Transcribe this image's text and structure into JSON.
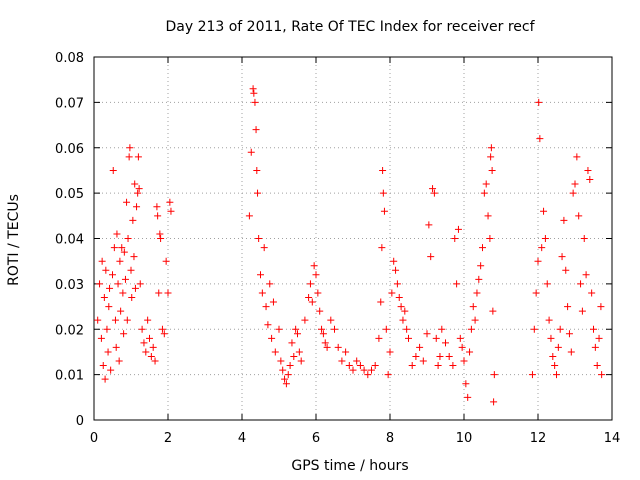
{
  "chart_data": {
    "type": "scatter",
    "title": "Day 213 of 2011, Rate Of TEC Index for receiver recf",
    "xlabel": "GPS time / hours",
    "ylabel": "ROTI / TECUs",
    "xlim": [
      0,
      14
    ],
    "ylim": [
      0,
      0.08
    ],
    "xticks": [
      0,
      2,
      4,
      6,
      8,
      10,
      12,
      14
    ],
    "xtick_labels": [
      "0",
      "2",
      "4",
      "6",
      "8",
      "10",
      "12",
      "14"
    ],
    "yticks": [
      0,
      0.01,
      0.02,
      0.03,
      0.04,
      0.05,
      0.06,
      0.07,
      0.08
    ],
    "ytick_labels": [
      "0",
      "0.01",
      "0.02",
      "0.03",
      "0.04",
      "0.05",
      "0.06",
      "0.07",
      "0.08"
    ],
    "grid": true,
    "marker": "+",
    "marker_color": "#ff0000",
    "series": [
      {
        "points": [
          [
            0.1,
            0.022
          ],
          [
            0.15,
            0.03
          ],
          [
            0.2,
            0.018
          ],
          [
            0.22,
            0.035
          ],
          [
            0.25,
            0.012
          ],
          [
            0.28,
            0.027
          ],
          [
            0.3,
            0.009
          ],
          [
            0.32,
            0.033
          ],
          [
            0.35,
            0.02
          ],
          [
            0.38,
            0.015
          ],
          [
            0.4,
            0.025
          ],
          [
            0.42,
            0.029
          ],
          [
            0.45,
            0.011
          ],
          [
            0.5,
            0.032
          ],
          [
            0.52,
            0.055
          ],
          [
            0.55,
            0.038
          ],
          [
            0.58,
            0.022
          ],
          [
            0.6,
            0.016
          ],
          [
            0.62,
            0.041
          ],
          [
            0.65,
            0.03
          ],
          [
            0.68,
            0.013
          ],
          [
            0.7,
            0.035
          ],
          [
            0.72,
            0.024
          ],
          [
            0.75,
            0.038
          ],
          [
            0.78,
            0.028
          ],
          [
            0.8,
            0.019
          ],
          [
            0.82,
            0.037
          ],
          [
            0.85,
            0.031
          ],
          [
            0.88,
            0.048
          ],
          [
            0.9,
            0.022
          ],
          [
            0.92,
            0.04
          ],
          [
            0.95,
            0.058
          ],
          [
            0.97,
            0.06
          ],
          [
            1.0,
            0.033
          ],
          [
            1.02,
            0.027
          ],
          [
            1.05,
            0.044
          ],
          [
            1.08,
            0.036
          ],
          [
            1.1,
            0.052
          ],
          [
            1.12,
            0.029
          ],
          [
            1.15,
            0.047
          ],
          [
            1.18,
            0.05
          ],
          [
            1.2,
            0.058
          ],
          [
            1.22,
            0.051
          ],
          [
            1.25,
            0.03
          ],
          [
            1.3,
            0.02
          ],
          [
            1.35,
            0.017
          ],
          [
            1.4,
            0.015
          ],
          [
            1.45,
            0.022
          ],
          [
            1.5,
            0.018
          ],
          [
            1.55,
            0.014
          ],
          [
            1.6,
            0.016
          ],
          [
            1.65,
            0.013
          ],
          [
            1.7,
            0.047
          ],
          [
            1.72,
            0.045
          ],
          [
            1.75,
            0.028
          ],
          [
            1.78,
            0.041
          ],
          [
            1.8,
            0.04
          ],
          [
            1.85,
            0.02
          ],
          [
            1.9,
            0.019
          ],
          [
            1.95,
            0.035
          ],
          [
            2.0,
            0.028
          ],
          [
            2.05,
            0.048
          ],
          [
            2.08,
            0.046
          ],
          [
            4.2,
            0.045
          ],
          [
            4.25,
            0.059
          ],
          [
            4.3,
            0.073
          ],
          [
            4.32,
            0.072
          ],
          [
            4.35,
            0.07
          ],
          [
            4.38,
            0.064
          ],
          [
            4.4,
            0.055
          ],
          [
            4.42,
            0.05
          ],
          [
            4.45,
            0.04
          ],
          [
            4.5,
            0.032
          ],
          [
            4.55,
            0.028
          ],
          [
            4.6,
            0.038
          ],
          [
            4.65,
            0.025
          ],
          [
            4.7,
            0.021
          ],
          [
            4.75,
            0.03
          ],
          [
            4.8,
            0.018
          ],
          [
            4.85,
            0.026
          ],
          [
            4.9,
            0.015
          ],
          [
            5.0,
            0.02
          ],
          [
            5.05,
            0.013
          ],
          [
            5.1,
            0.011
          ],
          [
            5.15,
            0.009
          ],
          [
            5.2,
            0.008
          ],
          [
            5.25,
            0.01
          ],
          [
            5.3,
            0.012
          ],
          [
            5.35,
            0.017
          ],
          [
            5.4,
            0.014
          ],
          [
            5.45,
            0.02
          ],
          [
            5.5,
            0.019
          ],
          [
            5.55,
            0.015
          ],
          [
            5.6,
            0.013
          ],
          [
            5.7,
            0.022
          ],
          [
            5.8,
            0.027
          ],
          [
            5.85,
            0.03
          ],
          [
            5.9,
            0.026
          ],
          [
            5.95,
            0.034
          ],
          [
            6.0,
            0.032
          ],
          [
            6.05,
            0.028
          ],
          [
            6.1,
            0.024
          ],
          [
            6.15,
            0.02
          ],
          [
            6.2,
            0.019
          ],
          [
            6.25,
            0.017
          ],
          [
            6.3,
            0.016
          ],
          [
            6.4,
            0.022
          ],
          [
            6.5,
            0.02
          ],
          [
            6.6,
            0.016
          ],
          [
            6.7,
            0.013
          ],
          [
            6.8,
            0.015
          ],
          [
            6.9,
            0.012
          ],
          [
            7.0,
            0.011
          ],
          [
            7.1,
            0.013
          ],
          [
            7.2,
            0.012
          ],
          [
            7.3,
            0.011
          ],
          [
            7.4,
            0.01
          ],
          [
            7.5,
            0.011
          ],
          [
            7.6,
            0.012
          ],
          [
            7.7,
            0.018
          ],
          [
            7.75,
            0.026
          ],
          [
            7.78,
            0.038
          ],
          [
            7.8,
            0.055
          ],
          [
            7.82,
            0.05
          ],
          [
            7.85,
            0.046
          ],
          [
            7.9,
            0.02
          ],
          [
            7.95,
            0.01
          ],
          [
            8.0,
            0.015
          ],
          [
            8.05,
            0.028
          ],
          [
            8.1,
            0.035
          ],
          [
            8.15,
            0.033
          ],
          [
            8.2,
            0.03
          ],
          [
            8.25,
            0.027
          ],
          [
            8.3,
            0.025
          ],
          [
            8.35,
            0.022
          ],
          [
            8.4,
            0.024
          ],
          [
            8.45,
            0.02
          ],
          [
            8.5,
            0.018
          ],
          [
            8.6,
            0.012
          ],
          [
            8.7,
            0.014
          ],
          [
            8.8,
            0.016
          ],
          [
            8.9,
            0.013
          ],
          [
            9.0,
            0.019
          ],
          [
            9.05,
            0.043
          ],
          [
            9.1,
            0.036
          ],
          [
            9.15,
            0.051
          ],
          [
            9.2,
            0.05
          ],
          [
            9.25,
            0.018
          ],
          [
            9.3,
            0.012
          ],
          [
            9.35,
            0.014
          ],
          [
            9.4,
            0.02
          ],
          [
            9.5,
            0.017
          ],
          [
            9.6,
            0.014
          ],
          [
            9.7,
            0.012
          ],
          [
            9.75,
            0.04
          ],
          [
            9.8,
            0.03
          ],
          [
            9.85,
            0.042
          ],
          [
            9.9,
            0.018
          ],
          [
            9.95,
            0.016
          ],
          [
            10.0,
            0.013
          ],
          [
            10.05,
            0.008
          ],
          [
            10.1,
            0.005
          ],
          [
            10.15,
            0.015
          ],
          [
            10.2,
            0.02
          ],
          [
            10.25,
            0.025
          ],
          [
            10.3,
            0.022
          ],
          [
            10.35,
            0.028
          ],
          [
            10.4,
            0.031
          ],
          [
            10.45,
            0.034
          ],
          [
            10.5,
            0.038
          ],
          [
            10.55,
            0.05
          ],
          [
            10.6,
            0.052
          ],
          [
            10.65,
            0.045
          ],
          [
            10.7,
            0.04
          ],
          [
            10.72,
            0.058
          ],
          [
            10.74,
            0.06
          ],
          [
            10.76,
            0.055
          ],
          [
            10.78,
            0.024
          ],
          [
            10.8,
            0.004
          ],
          [
            10.82,
            0.01
          ],
          [
            11.85,
            0.01
          ],
          [
            11.9,
            0.02
          ],
          [
            11.95,
            0.028
          ],
          [
            12.0,
            0.035
          ],
          [
            12.02,
            0.07
          ],
          [
            12.05,
            0.062
          ],
          [
            12.1,
            0.038
          ],
          [
            12.15,
            0.046
          ],
          [
            12.2,
            0.04
          ],
          [
            12.25,
            0.03
          ],
          [
            12.3,
            0.022
          ],
          [
            12.35,
            0.018
          ],
          [
            12.4,
            0.014
          ],
          [
            12.45,
            0.012
          ],
          [
            12.5,
            0.01
          ],
          [
            12.55,
            0.016
          ],
          [
            12.6,
            0.02
          ],
          [
            12.65,
            0.036
          ],
          [
            12.7,
            0.044
          ],
          [
            12.75,
            0.033
          ],
          [
            12.8,
            0.025
          ],
          [
            12.85,
            0.019
          ],
          [
            12.9,
            0.015
          ],
          [
            12.95,
            0.05
          ],
          [
            13.0,
            0.052
          ],
          [
            13.05,
            0.058
          ],
          [
            13.1,
            0.045
          ],
          [
            13.15,
            0.03
          ],
          [
            13.2,
            0.024
          ],
          [
            13.25,
            0.04
          ],
          [
            13.3,
            0.032
          ],
          [
            13.35,
            0.055
          ],
          [
            13.4,
            0.053
          ],
          [
            13.45,
            0.028
          ],
          [
            13.5,
            0.02
          ],
          [
            13.55,
            0.016
          ],
          [
            13.6,
            0.012
          ],
          [
            13.65,
            0.018
          ],
          [
            13.7,
            0.025
          ],
          [
            13.72,
            0.01
          ]
        ]
      }
    ]
  }
}
